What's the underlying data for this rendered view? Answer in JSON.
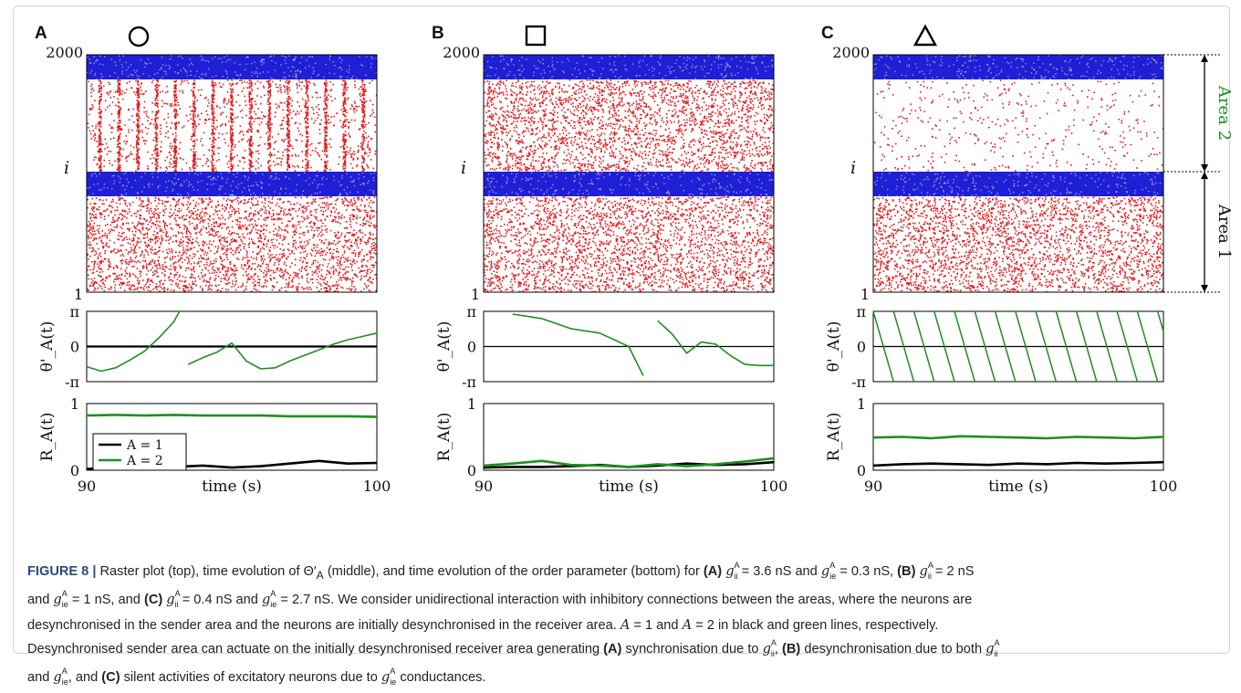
{
  "figure": {
    "panels": [
      {
        "letter": "A",
        "marker": "circle",
        "raster": {
          "y_top_label": "2000",
          "y_bottom_label": "1",
          "y_axis_label": "i",
          "red_pattern": "periodic-bursts",
          "colors": {
            "excitatory": "#e31a1c",
            "inhibitory": "#1f1fd6"
          }
        },
        "phase": {
          "tick_labels": [
            "π",
            "0",
            "-π"
          ],
          "ylabel": "θ'_A(t)"
        },
        "order": {
          "tick_labels": [
            "1",
            "0"
          ],
          "ylabel": "R_A(t)",
          "xlabel": "time (s)",
          "x_tick_labels": [
            "90",
            "100"
          ],
          "legend": [
            "A = 1",
            "A = 2"
          ]
        }
      },
      {
        "letter": "B",
        "marker": "square",
        "raster": {
          "y_top_label": "2000",
          "y_bottom_label": "1",
          "y_axis_label": "i",
          "red_pattern": "dense",
          "colors": {
            "excitatory": "#e31a1c",
            "inhibitory": "#1f1fd6"
          }
        },
        "phase": {
          "tick_labels": [
            "π",
            "0",
            "-π"
          ],
          "ylabel": "θ'_A(t)"
        },
        "order": {
          "tick_labels": [
            "1",
            "0"
          ],
          "ylabel": "R_A(t)",
          "xlabel": "time (s)",
          "x_tick_labels": [
            "90",
            "100"
          ],
          "legend": []
        }
      },
      {
        "letter": "C",
        "marker": "triangle",
        "raster": {
          "y_top_label": "2000",
          "y_bottom_label": "1",
          "y_axis_label": "i",
          "red_pattern": "sparse",
          "colors": {
            "excitatory": "#e31a1c",
            "inhibitory": "#1f1fd6"
          },
          "area_labels": [
            "Area 2",
            "Area 1"
          ]
        },
        "phase": {
          "tick_labels": [
            "π",
            "0",
            "-π"
          ],
          "ylabel": "θ'_A(t)"
        },
        "order": {
          "tick_labels": [
            "1",
            "0"
          ],
          "ylabel": "R_A(t)",
          "xlabel": "time (s)",
          "x_tick_labels": [
            "90",
            "100"
          ],
          "legend": []
        }
      }
    ],
    "series_colors": {
      "A1": "#000000",
      "A2": "#1f8f1f"
    },
    "caption": {
      "label": "FIGURE 8 |",
      "lines": [
        "Raster plot (top), time evolution of Θ′_A (middle), and time evolution of the order parameter (bottom) for (A) g^A_ii = 3.6 nS and g^A_ie = 0.3 nS, (B) g^A_ii = 2 nS",
        "and g^A_ie = 1 nS, and (C) g^A_ii = 0.4 nS and g^A_ie = 2.7 nS. We consider unidirectional interaction with inhibitory connections between the areas, where the neurons are",
        "desynchronised in the sender area and the neurons are initially desynchronised in the receiver area. A = 1 and A = 2 in black and green lines, respectively.",
        "Desynchronised sender area can actuate on the initially desynchronised receiver area generating (A) synchronisation due to g^A_ii, (B) desynchronisation due to both g^A_ii",
        "and g^A_ie, and (C) silent activities of excitatory neurons due to g^A_ie conductances."
      ]
    }
  },
  "chart_data": [
    {
      "type": "line",
      "panel": "A",
      "title": "",
      "xlabel": "time (s)",
      "ylabel": "θ'_A(t)",
      "xlim": [
        90,
        100
      ],
      "ylim": [
        -3.14159,
        3.14159
      ],
      "series": [
        {
          "name": "A = 1",
          "x": [
            90,
            100
          ],
          "y": [
            0,
            0
          ]
        },
        {
          "name": "A = 2",
          "x": [
            90,
            90.5,
            91,
            91.5,
            92,
            92.5,
            93,
            93.2,
            93.5,
            94,
            94.5,
            95,
            95.5,
            96,
            96.5,
            97,
            97.5,
            98,
            98.5,
            99,
            99.5,
            100
          ],
          "y": [
            -1.8,
            -2.2,
            -1.9,
            -1.2,
            -0.4,
            0.8,
            2.2,
            3.14,
            -1.6,
            -1.0,
            -0.5,
            0.3,
            -1.3,
            -2.0,
            -1.9,
            -1.3,
            -0.8,
            -0.3,
            0.2,
            0.6,
            0.9,
            1.2
          ]
        }
      ]
    },
    {
      "type": "line",
      "panel": "A",
      "title": "",
      "xlabel": "time (s)",
      "ylabel": "R_A(t)",
      "xlim": [
        90,
        100
      ],
      "ylim": [
        0,
        1
      ],
      "series": [
        {
          "name": "A = 1",
          "x": [
            90,
            91,
            92,
            93,
            94,
            95,
            96,
            97,
            98,
            99,
            100
          ],
          "y": [
            0.02,
            0.03,
            0.08,
            0.05,
            0.07,
            0.04,
            0.06,
            0.1,
            0.14,
            0.1,
            0.11
          ]
        },
        {
          "name": "A = 2",
          "x": [
            90,
            91,
            92,
            93,
            94,
            95,
            96,
            97,
            98,
            99,
            100
          ],
          "y": [
            0.82,
            0.83,
            0.82,
            0.83,
            0.82,
            0.82,
            0.82,
            0.81,
            0.81,
            0.81,
            0.8
          ]
        }
      ]
    },
    {
      "type": "line",
      "panel": "B",
      "title": "",
      "xlabel": "time (s)",
      "ylabel": "θ'_A(t)",
      "xlim": [
        90,
        100
      ],
      "ylim": [
        -3.14159,
        3.14159
      ],
      "series": [
        {
          "name": "A = 1",
          "x": [
            90,
            100
          ],
          "y": [
            0,
            0
          ]
        },
        {
          "name": "A = 2",
          "x": [
            90,
            91,
            92,
            93,
            94,
            95,
            95.5,
            96,
            96.5,
            97,
            97.5,
            98,
            98.5,
            99,
            99.5,
            100
          ],
          "y": [
            -2.7,
            2.9,
            2.5,
            1.6,
            1.2,
            0.0,
            -2.6,
            2.3,
            1.1,
            -0.6,
            0.4,
            0.2,
            -0.8,
            -1.6,
            -1.7,
            -1.7
          ]
        }
      ]
    },
    {
      "type": "line",
      "panel": "B",
      "title": "",
      "xlabel": "time (s)",
      "ylabel": "R_A(t)",
      "xlim": [
        90,
        100
      ],
      "ylim": [
        0,
        1
      ],
      "series": [
        {
          "name": "A = 1",
          "x": [
            90,
            91,
            92,
            93,
            94,
            95,
            96,
            97,
            98,
            99,
            100
          ],
          "y": [
            0.04,
            0.05,
            0.05,
            0.06,
            0.08,
            0.05,
            0.07,
            0.1,
            0.08,
            0.09,
            0.12
          ]
        },
        {
          "name": "A = 2",
          "x": [
            90,
            91,
            92,
            93,
            94,
            95,
            96,
            97,
            98,
            99,
            100
          ],
          "y": [
            0.07,
            0.1,
            0.14,
            0.08,
            0.07,
            0.05,
            0.09,
            0.06,
            0.09,
            0.13,
            0.18
          ]
        }
      ]
    },
    {
      "type": "line",
      "panel": "C",
      "title": "",
      "xlabel": "time (s)",
      "ylabel": "θ'_A(t)",
      "xlim": [
        90,
        100
      ],
      "ylim": [
        -3.14159,
        3.14159
      ],
      "series": [
        {
          "name": "A = 1",
          "x": [
            90,
            100
          ],
          "y": [
            0,
            0
          ]
        },
        {
          "name": "A = 2",
          "note_period_s": 0.7,
          "x": [
            90,
            100
          ],
          "y": [
            3.14159,
            -3.14159
          ]
        }
      ]
    },
    {
      "type": "line",
      "panel": "C",
      "title": "",
      "xlabel": "time (s)",
      "ylabel": "R_A(t)",
      "xlim": [
        90,
        100
      ],
      "ylim": [
        0,
        1
      ],
      "series": [
        {
          "name": "A = 1",
          "x": [
            90,
            91,
            92,
            93,
            94,
            95,
            96,
            97,
            98,
            99,
            100
          ],
          "y": [
            0.07,
            0.09,
            0.1,
            0.09,
            0.08,
            0.1,
            0.09,
            0.11,
            0.1,
            0.11,
            0.12
          ]
        },
        {
          "name": "A = 2",
          "x": [
            90,
            91,
            92,
            93,
            94,
            95,
            96,
            97,
            98,
            99,
            100
          ],
          "y": [
            0.49,
            0.5,
            0.48,
            0.51,
            0.5,
            0.49,
            0.48,
            0.5,
            0.49,
            0.48,
            0.5
          ]
        }
      ]
    }
  ]
}
